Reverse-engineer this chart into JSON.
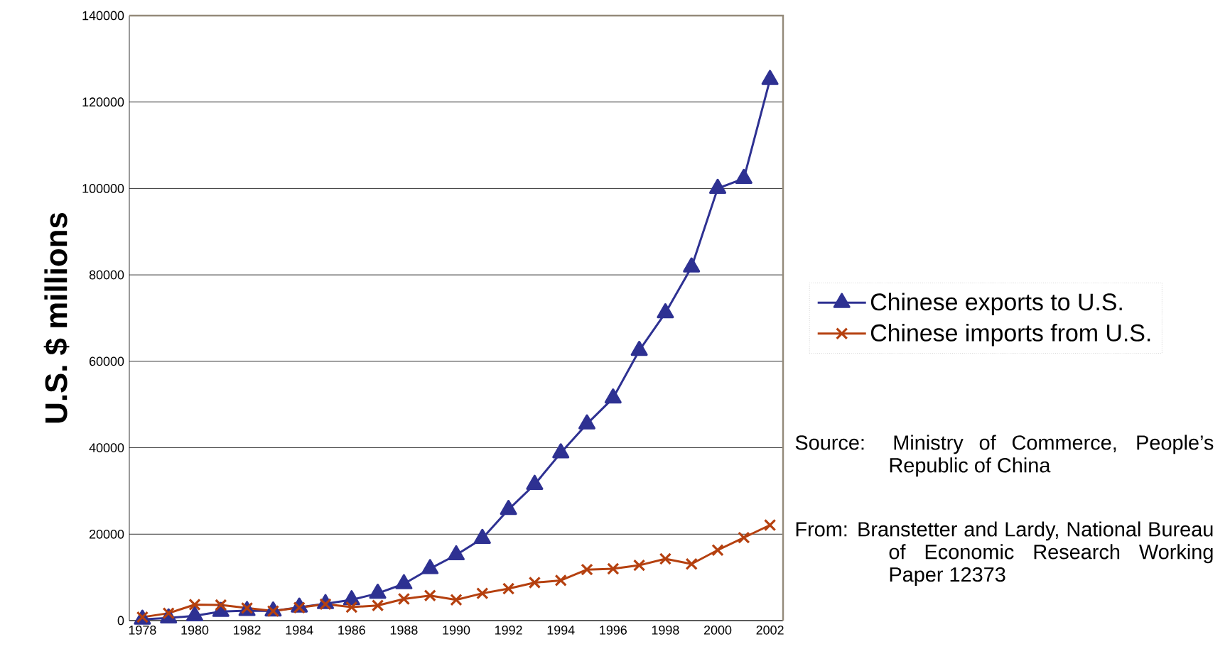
{
  "chart_data": {
    "type": "line",
    "categories": [
      "1978",
      null,
      "1980",
      null,
      "1982",
      null,
      "1984",
      null,
      "1986",
      null,
      "1988",
      null,
      "1990",
      null,
      "1992",
      null,
      "1994",
      null,
      "1996",
      null,
      "1998",
      null,
      "2000",
      null,
      "2002"
    ],
    "series": [
      {
        "name": "Chinese exports to U.S.",
        "color": "#2e3192",
        "marker": "triangle",
        "values": [
          300,
          600,
          1100,
          2100,
          2300,
          2200,
          3100,
          3900,
          4800,
          6300,
          8500,
          12000,
          15200,
          19000,
          25700,
          31500,
          38800,
          45500,
          51500,
          62500,
          71200,
          81800,
          100000,
          102300,
          125200
        ]
      },
      {
        "name": "Chinese imports from U.S.",
        "color": "#b5400f",
        "marker": "cross",
        "values": [
          800,
          1700,
          3700,
          3600,
          2900,
          2200,
          3000,
          3800,
          3100,
          3500,
          5000,
          5800,
          4800,
          6300,
          7400,
          8800,
          9300,
          11800,
          12000,
          12800,
          14300,
          13100,
          16300,
          19200,
          22100
        ]
      }
    ],
    "ylabel": "U.S. $ millions",
    "ylim": [
      0,
      140000
    ],
    "yticks": [
      0,
      20000,
      40000,
      60000,
      80000,
      100000,
      120000,
      140000
    ],
    "grid": "y",
    "legend": "right",
    "line_style": "solid",
    "annotations": [
      "Source:  Ministry of Commerce, People’s Republic of China",
      "From:      Branstetter and Lardy, National Bureau of Economic Research Working Paper 12373"
    ]
  }
}
